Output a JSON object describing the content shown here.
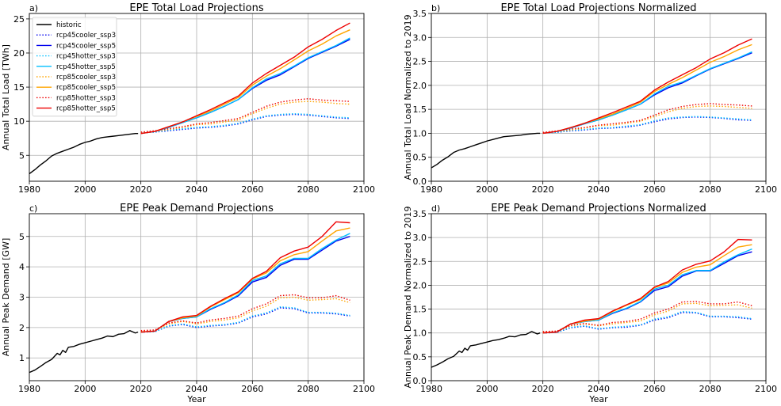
{
  "figure": {
    "xlabel": "Year",
    "legend_entries": [
      {
        "name": "historic",
        "color": "#000000",
        "dash": "solid"
      },
      {
        "name": "rcp45cooler_ssp3",
        "color": "#0000ee",
        "dash": "dotted"
      },
      {
        "name": "rcp45cooler_ssp5",
        "color": "#0000ee",
        "dash": "solid"
      },
      {
        "name": "rcp45hotter_ssp3",
        "color": "#00bfff",
        "dash": "dotted"
      },
      {
        "name": "rcp45hotter_ssp5",
        "color": "#00bfff",
        "dash": "solid"
      },
      {
        "name": "rcp85cooler_ssp3",
        "color": "#ffa500",
        "dash": "dotted"
      },
      {
        "name": "rcp85cooler_ssp5",
        "color": "#ffa500",
        "dash": "solid"
      },
      {
        "name": "rcp85hotter_ssp3",
        "color": "#ee0000",
        "dash": "dotted"
      },
      {
        "name": "rcp85hotter_ssp5",
        "color": "#ee0000",
        "dash": "solid"
      }
    ]
  },
  "chart_data": [
    {
      "panel_label": "a)",
      "type": "line",
      "title": "EPE Total Load Projections",
      "xlabel": "",
      "ylabel": "Annual Total Load [TWh]",
      "xlim": [
        1980,
        2100
      ],
      "ylim": [
        1.2,
        25.8
      ],
      "xticks": [
        1980,
        2000,
        2020,
        2040,
        2060,
        2080,
        2100
      ],
      "yticks": [
        5,
        10,
        15,
        20,
        25
      ],
      "grid": true,
      "legend": "top-left",
      "historic": {
        "x": [
          1980,
          1982,
          1984,
          1986,
          1988,
          1990,
          1992,
          1994,
          1996,
          1998,
          2000,
          2002,
          2004,
          2006,
          2008,
          2010,
          2012,
          2014,
          2016,
          2018,
          2019
        ],
        "y": [
          2.3,
          2.9,
          3.6,
          4.2,
          4.9,
          5.3,
          5.6,
          5.9,
          6.2,
          6.6,
          6.9,
          7.1,
          7.4,
          7.6,
          7.7,
          7.8,
          7.9,
          8.0,
          8.1,
          8.2,
          8.2
        ]
      },
      "x": [
        2020,
        2025,
        2030,
        2035,
        2040,
        2045,
        2050,
        2055,
        2060,
        2065,
        2070,
        2075,
        2080,
        2085,
        2090,
        2095
      ],
      "series": [
        {
          "name": "rcp45cooler_ssp3",
          "values": [
            8.3,
            8.4,
            8.6,
            8.8,
            9.0,
            9.1,
            9.3,
            9.6,
            10.2,
            10.7,
            10.9,
            11.0,
            10.9,
            10.7,
            10.5,
            10.4
          ]
        },
        {
          "name": "rcp45hotter_ssp3",
          "values": [
            8.3,
            8.4,
            8.7,
            8.9,
            9.1,
            9.2,
            9.4,
            9.7,
            10.3,
            10.8,
            11.0,
            11.1,
            11.0,
            10.8,
            10.6,
            10.5
          ]
        },
        {
          "name": "rcp85cooler_ssp3",
          "values": [
            8.3,
            8.5,
            8.8,
            9.1,
            9.5,
            9.6,
            9.9,
            10.2,
            11.1,
            11.9,
            12.5,
            12.8,
            12.9,
            12.8,
            12.6,
            12.5
          ]
        },
        {
          "name": "rcp85hotter_ssp3",
          "values": [
            8.4,
            8.6,
            8.9,
            9.2,
            9.6,
            9.8,
            10.1,
            10.4,
            11.3,
            12.2,
            12.8,
            13.1,
            13.3,
            13.1,
            13.0,
            12.9
          ]
        },
        {
          "name": "rcp45cooler_ssp5",
          "values": [
            8.2,
            8.5,
            9.1,
            9.8,
            10.5,
            11.3,
            12.2,
            13.2,
            14.8,
            16.0,
            16.8,
            18.0,
            19.2,
            20.1,
            21.0,
            22.0
          ]
        },
        {
          "name": "rcp45hotter_ssp5",
          "values": [
            8.2,
            8.5,
            9.1,
            9.8,
            10.5,
            11.3,
            12.2,
            13.2,
            14.9,
            16.2,
            17.0,
            18.1,
            19.3,
            20.2,
            21.1,
            22.2
          ]
        },
        {
          "name": "rcp85cooler_ssp5",
          "values": [
            8.2,
            8.5,
            9.2,
            9.9,
            10.7,
            11.5,
            12.5,
            13.5,
            15.3,
            16.6,
            17.7,
            19.0,
            20.3,
            21.3,
            22.5,
            23.4
          ]
        },
        {
          "name": "rcp85hotter_ssp5",
          "values": [
            8.2,
            8.5,
            9.2,
            9.9,
            10.8,
            11.7,
            12.7,
            13.7,
            15.6,
            17.0,
            18.2,
            19.4,
            20.9,
            22.0,
            23.3,
            24.4
          ]
        }
      ]
    },
    {
      "panel_label": "b)",
      "type": "line",
      "title": "EPE Total Load Projections Normalized",
      "xlabel": "",
      "ylabel": "Annual Total Load Normalized to 2019",
      "xlim": [
        1980,
        2100
      ],
      "ylim": [
        0.0,
        3.5
      ],
      "xticks": [
        1980,
        2000,
        2020,
        2040,
        2060,
        2080,
        2100
      ],
      "yticks": [
        0.0,
        0.5,
        1.0,
        1.5,
        2.0,
        2.5,
        3.0,
        3.5
      ],
      "grid": true,
      "historic": {
        "x": [
          1980,
          1982,
          1984,
          1986,
          1988,
          1990,
          1992,
          1994,
          1996,
          1998,
          2000,
          2002,
          2004,
          2006,
          2008,
          2010,
          2012,
          2014,
          2016,
          2018,
          2019
        ],
        "y": [
          0.28,
          0.35,
          0.44,
          0.51,
          0.6,
          0.65,
          0.68,
          0.72,
          0.76,
          0.8,
          0.84,
          0.87,
          0.9,
          0.93,
          0.94,
          0.95,
          0.96,
          0.98,
          0.99,
          1.0,
          1.0
        ]
      },
      "x": [
        2020,
        2025,
        2030,
        2035,
        2040,
        2045,
        2050,
        2055,
        2060,
        2065,
        2070,
        2075,
        2080,
        2085,
        2090,
        2095
      ],
      "series": [
        {
          "name": "rcp45cooler_ssp3",
          "values": [
            1.01,
            1.02,
            1.05,
            1.07,
            1.1,
            1.11,
            1.13,
            1.17,
            1.24,
            1.3,
            1.33,
            1.34,
            1.33,
            1.31,
            1.28,
            1.27
          ]
        },
        {
          "name": "rcp45hotter_ssp3",
          "values": [
            1.01,
            1.02,
            1.06,
            1.08,
            1.11,
            1.12,
            1.15,
            1.18,
            1.26,
            1.32,
            1.34,
            1.35,
            1.34,
            1.32,
            1.3,
            1.28
          ]
        },
        {
          "name": "rcp85cooler_ssp3",
          "values": [
            1.01,
            1.04,
            1.07,
            1.11,
            1.16,
            1.17,
            1.21,
            1.25,
            1.35,
            1.45,
            1.52,
            1.56,
            1.57,
            1.56,
            1.54,
            1.52
          ]
        },
        {
          "name": "rcp85hotter_ssp3",
          "values": [
            1.02,
            1.05,
            1.09,
            1.12,
            1.17,
            1.2,
            1.23,
            1.27,
            1.38,
            1.49,
            1.56,
            1.6,
            1.62,
            1.6,
            1.59,
            1.57
          ]
        },
        {
          "name": "rcp45cooler_ssp5",
          "values": [
            1.0,
            1.04,
            1.11,
            1.2,
            1.28,
            1.38,
            1.49,
            1.61,
            1.8,
            1.95,
            2.05,
            2.2,
            2.34,
            2.45,
            2.56,
            2.68
          ]
        },
        {
          "name": "rcp45hotter_ssp5",
          "values": [
            1.0,
            1.04,
            1.11,
            1.2,
            1.28,
            1.38,
            1.49,
            1.61,
            1.82,
            1.98,
            2.07,
            2.21,
            2.35,
            2.46,
            2.57,
            2.7
          ]
        },
        {
          "name": "rcp85cooler_ssp5",
          "values": [
            1.0,
            1.04,
            1.12,
            1.21,
            1.3,
            1.4,
            1.52,
            1.65,
            1.87,
            2.02,
            2.16,
            2.32,
            2.48,
            2.6,
            2.74,
            2.85
          ]
        },
        {
          "name": "rcp85hotter_ssp5",
          "values": [
            1.0,
            1.04,
            1.12,
            1.21,
            1.32,
            1.43,
            1.55,
            1.67,
            1.9,
            2.07,
            2.22,
            2.37,
            2.55,
            2.68,
            2.84,
            2.97
          ]
        }
      ]
    },
    {
      "panel_label": "c)",
      "type": "line",
      "title": "EPE Peak Demand Projections",
      "xlabel": "Year",
      "ylabel": "Annual Peak Demand [GW]",
      "xlim": [
        1980,
        2100
      ],
      "ylim": [
        0.25,
        5.75
      ],
      "xticks": [
        1980,
        2000,
        2020,
        2040,
        2060,
        2080,
        2100
      ],
      "yticks": [
        1,
        2,
        3,
        4,
        5
      ],
      "grid": true,
      "historic": {
        "x": [
          1980,
          1982,
          1984,
          1986,
          1988,
          1990,
          1991,
          1992,
          1993,
          1994,
          1996,
          1998,
          2000,
          2002,
          2004,
          2006,
          2008,
          2010,
          2012,
          2014,
          2016,
          2018,
          2019
        ],
        "y": [
          0.52,
          0.6,
          0.72,
          0.85,
          0.95,
          1.15,
          1.1,
          1.25,
          1.18,
          1.35,
          1.38,
          1.45,
          1.5,
          1.55,
          1.6,
          1.65,
          1.72,
          1.7,
          1.78,
          1.8,
          1.9,
          1.82,
          1.85
        ]
      },
      "x": [
        2020,
        2025,
        2030,
        2035,
        2040,
        2045,
        2050,
        2055,
        2060,
        2065,
        2070,
        2075,
        2080,
        2085,
        2090,
        2095
      ],
      "series": [
        {
          "name": "rcp45cooler_ssp3",
          "values": [
            1.85,
            1.86,
            2.05,
            2.1,
            2.0,
            2.05,
            2.08,
            2.15,
            2.35,
            2.45,
            2.65,
            2.62,
            2.48,
            2.48,
            2.45,
            2.38
          ]
        },
        {
          "name": "rcp45hotter_ssp3",
          "values": [
            1.85,
            1.86,
            2.06,
            2.12,
            2.02,
            2.07,
            2.1,
            2.17,
            2.38,
            2.48,
            2.68,
            2.65,
            2.5,
            2.5,
            2.47,
            2.4
          ]
        },
        {
          "name": "rcp85cooler_ssp3",
          "values": [
            1.88,
            1.9,
            2.12,
            2.2,
            2.12,
            2.2,
            2.25,
            2.32,
            2.55,
            2.7,
            2.98,
            3.0,
            2.9,
            2.92,
            2.95,
            2.82
          ]
        },
        {
          "name": "rcp85hotter_ssp3",
          "values": [
            1.9,
            1.92,
            2.15,
            2.22,
            2.15,
            2.25,
            2.3,
            2.38,
            2.62,
            2.78,
            3.05,
            3.08,
            2.98,
            2.98,
            3.05,
            2.9
          ]
        },
        {
          "name": "rcp45cooler_ssp5",
          "values": [
            1.85,
            1.88,
            2.2,
            2.3,
            2.35,
            2.6,
            2.8,
            3.05,
            3.5,
            3.65,
            4.05,
            4.25,
            4.25,
            4.55,
            4.85,
            5.0
          ]
        },
        {
          "name": "rcp45hotter_ssp5",
          "values": [
            1.85,
            1.88,
            2.2,
            2.3,
            2.35,
            2.62,
            2.82,
            3.08,
            3.55,
            3.7,
            4.1,
            4.28,
            4.28,
            4.6,
            4.88,
            5.1
          ]
        },
        {
          "name": "rcp85cooler_ssp5",
          "values": [
            1.85,
            1.88,
            2.2,
            2.32,
            2.38,
            2.68,
            2.92,
            3.15,
            3.6,
            3.8,
            4.2,
            4.4,
            4.5,
            4.85,
            5.18,
            5.28
          ]
        },
        {
          "name": "rcp85hotter_ssp5",
          "values": [
            1.85,
            1.88,
            2.2,
            2.35,
            2.4,
            2.7,
            2.95,
            3.18,
            3.62,
            3.85,
            4.3,
            4.52,
            4.65,
            5.0,
            5.48,
            5.45
          ]
        }
      ]
    },
    {
      "panel_label": "d)",
      "type": "line",
      "title": "EPE Peak Demand Projections Normalized",
      "xlabel": "Year",
      "ylabel": "Annual Peak Demand Normalized to 2019",
      "xlim": [
        1980,
        2100
      ],
      "ylim": [
        0.0,
        3.5
      ],
      "xticks": [
        1980,
        2000,
        2020,
        2040,
        2060,
        2080,
        2100
      ],
      "yticks": [
        0.0,
        0.5,
        1.0,
        1.5,
        2.0,
        2.5,
        3.0,
        3.5
      ],
      "grid": true,
      "historic": {
        "x": [
          1980,
          1982,
          1984,
          1986,
          1988,
          1990,
          1991,
          1992,
          1993,
          1994,
          1996,
          1998,
          2000,
          2002,
          2004,
          2006,
          2008,
          2010,
          2012,
          2014,
          2016,
          2018,
          2019
        ],
        "y": [
          0.28,
          0.33,
          0.39,
          0.46,
          0.51,
          0.62,
          0.59,
          0.68,
          0.64,
          0.73,
          0.75,
          0.78,
          0.81,
          0.84,
          0.86,
          0.89,
          0.93,
          0.92,
          0.96,
          0.97,
          1.03,
          0.98,
          1.0
        ]
      },
      "x": [
        2020,
        2025,
        2030,
        2035,
        2040,
        2045,
        2050,
        2055,
        2060,
        2065,
        2070,
        2075,
        2080,
        2085,
        2090,
        2095
      ],
      "series": [
        {
          "name": "rcp45cooler_ssp3",
          "values": [
            1.0,
            1.01,
            1.11,
            1.14,
            1.08,
            1.11,
            1.12,
            1.16,
            1.27,
            1.32,
            1.43,
            1.42,
            1.34,
            1.34,
            1.32,
            1.29
          ]
        },
        {
          "name": "rcp45hotter_ssp3",
          "values": [
            1.0,
            1.01,
            1.12,
            1.15,
            1.09,
            1.12,
            1.14,
            1.17,
            1.29,
            1.34,
            1.45,
            1.43,
            1.35,
            1.35,
            1.34,
            1.3
          ]
        },
        {
          "name": "rcp85cooler_ssp3",
          "values": [
            1.02,
            1.03,
            1.15,
            1.19,
            1.15,
            1.19,
            1.22,
            1.25,
            1.38,
            1.46,
            1.61,
            1.62,
            1.57,
            1.58,
            1.59,
            1.52
          ]
        },
        {
          "name": "rcp85hotter_ssp3",
          "values": [
            1.03,
            1.04,
            1.16,
            1.2,
            1.16,
            1.22,
            1.24,
            1.29,
            1.42,
            1.5,
            1.65,
            1.66,
            1.61,
            1.61,
            1.65,
            1.57
          ]
        },
        {
          "name": "rcp45cooler_ssp5",
          "values": [
            1.0,
            1.02,
            1.19,
            1.24,
            1.27,
            1.41,
            1.51,
            1.65,
            1.89,
            1.97,
            2.19,
            2.3,
            2.3,
            2.46,
            2.62,
            2.7
          ]
        },
        {
          "name": "rcp45hotter_ssp5",
          "values": [
            1.0,
            1.02,
            1.19,
            1.24,
            1.27,
            1.42,
            1.52,
            1.66,
            1.92,
            2.0,
            2.22,
            2.31,
            2.31,
            2.49,
            2.64,
            2.76
          ]
        },
        {
          "name": "rcp85cooler_ssp5",
          "values": [
            1.0,
            1.02,
            1.19,
            1.25,
            1.29,
            1.45,
            1.58,
            1.7,
            1.95,
            2.05,
            2.27,
            2.38,
            2.43,
            2.62,
            2.8,
            2.85
          ]
        },
        {
          "name": "rcp85hotter_ssp5",
          "values": [
            1.0,
            1.02,
            1.19,
            1.27,
            1.3,
            1.46,
            1.59,
            1.72,
            1.96,
            2.08,
            2.32,
            2.44,
            2.51,
            2.7,
            2.96,
            2.95
          ]
        }
      ]
    }
  ]
}
